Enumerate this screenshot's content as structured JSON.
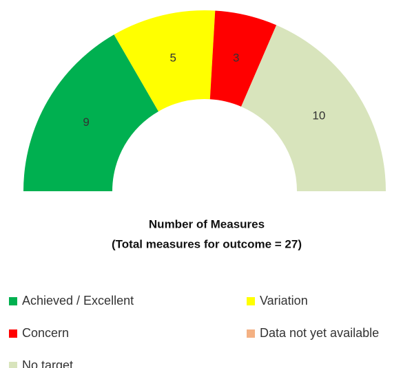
{
  "chart_data": {
    "type": "donut",
    "title": "Number of Measures",
    "subtitle": "(Total  measures for outcome = 27)",
    "categories": [
      "Achieved / Excellent",
      "Variation",
      "Concern",
      "Data not yet available",
      "No target"
    ],
    "values": [
      9,
      5,
      3,
      0,
      10
    ],
    "colors": [
      "#00b050",
      "#ffff00",
      "#ff0000",
      "#f4b183",
      "#d8e4bc"
    ],
    "arc": "half"
  }
}
